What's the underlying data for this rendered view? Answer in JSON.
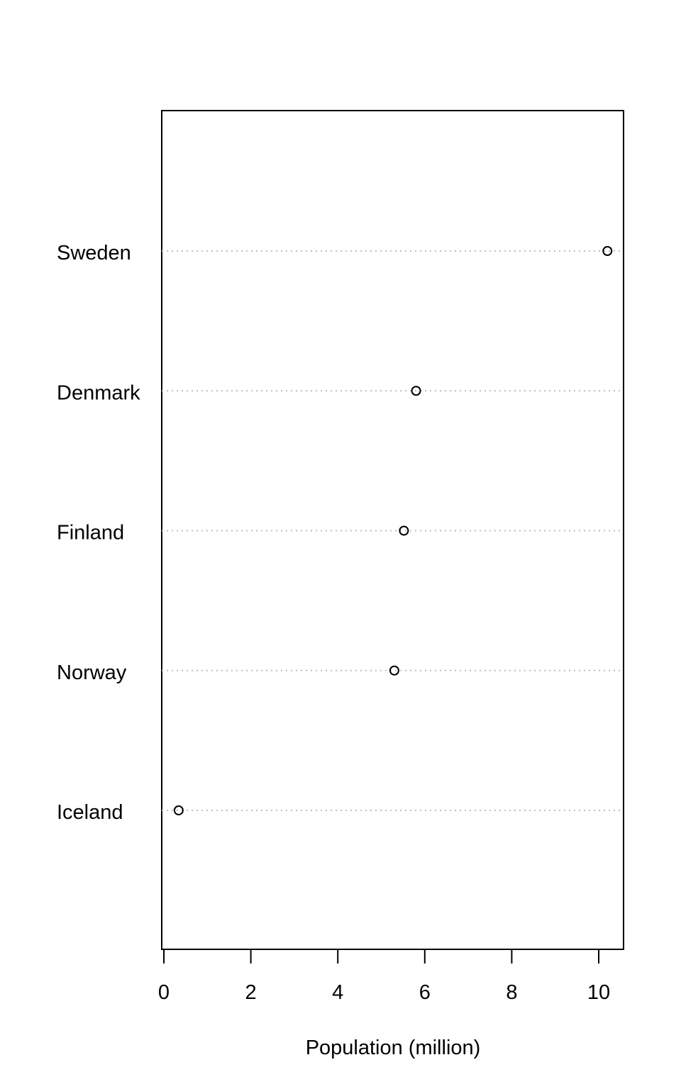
{
  "chart_data": {
    "type": "dot",
    "title": "",
    "xlabel": "Population (million)",
    "ylabel": "",
    "categories": [
      "Sweden",
      "Denmark",
      "Finland",
      "Norway",
      "Iceland"
    ],
    "values": [
      10.2,
      5.8,
      5.52,
      5.3,
      0.34
    ],
    "xlim": [
      0,
      10.5
    ],
    "x_ticks": [
      "0",
      "2",
      "4",
      "6",
      "8",
      "10"
    ],
    "grid": "dotted horizontal guide per category",
    "marker": "open circle",
    "colors": {
      "marker": "#000000",
      "guide": "#bebebe",
      "axis": "#000000"
    }
  }
}
